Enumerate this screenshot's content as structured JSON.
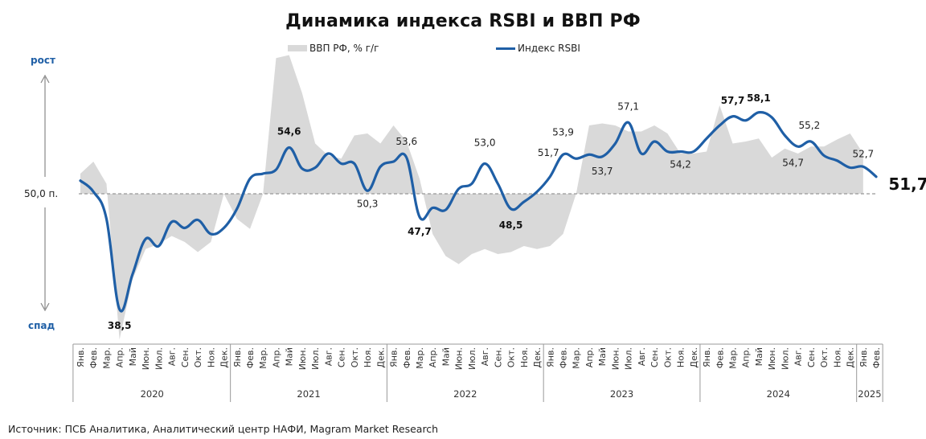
{
  "title": "Динамика индекса RSBI и ВВП РФ",
  "legend": {
    "gdp": "ВВП РФ, % г/г",
    "rsbi": "Индекс RSBI"
  },
  "axis": {
    "up_label": "рост",
    "down_label": "спад",
    "reference_label": "50,0 п."
  },
  "source": "Источник: ПСБ Аналитика, Аналитический центр НАФИ, Magram Market Research",
  "colors": {
    "rsbi_line": "#1f5fa6",
    "gdp_area": "#d9d9d9",
    "accent_text": "#1f5fa6"
  },
  "chart_data": {
    "type": "line",
    "title": "Динамика индекса RSBI и ВВП РФ",
    "xlabel": "",
    "ylabel": "",
    "reference_line": 50.0,
    "ylim": [
      37,
      65
    ],
    "grid": false,
    "legend_position": "top",
    "months": [
      "Янв.",
      "Фев.",
      "Мар.",
      "Апр.",
      "Май",
      "Июн.",
      "Июл.",
      "Авг.",
      "Сен.",
      "Окт.",
      "Ноя.",
      "Дек."
    ],
    "years": [
      {
        "label": "2020",
        "months": 12
      },
      {
        "label": "2021",
        "months": 12
      },
      {
        "label": "2022",
        "months": 12
      },
      {
        "label": "2023",
        "months": 12
      },
      {
        "label": "2024",
        "months": 12
      },
      {
        "label": "2025",
        "months": 2
      }
    ],
    "series": [
      {
        "name": "Индекс RSBI",
        "type": "line",
        "values": [
          51.3,
          50.2,
          47.5,
          38.5,
          42.0,
          45.5,
          44.8,
          47.2,
          46.6,
          47.4,
          46.0,
          46.6,
          48.5,
          51.5,
          52.0,
          52.4,
          54.6,
          52.5,
          52.6,
          54.0,
          53.0,
          53.0,
          50.3,
          52.7,
          53.2,
          53.6,
          47.7,
          48.6,
          48.4,
          50.5,
          51.0,
          53.0,
          51.0,
          48.5,
          49.2,
          50.2,
          51.7,
          53.9,
          53.5,
          53.9,
          53.7,
          55.0,
          57.1,
          54.0,
          55.2,
          54.2,
          54.2,
          54.2,
          55.5,
          56.8,
          57.7,
          57.3,
          58.1,
          57.6,
          55.8,
          54.7,
          55.2,
          53.8,
          53.3,
          52.6,
          52.7,
          51.7
        ]
      },
      {
        "name": "ВВП РФ, % г/г",
        "type": "area",
        "values": [
          52.0,
          53.2,
          51.0,
          35.5,
          41.5,
          44.5,
          45.0,
          45.8,
          45.2,
          44.2,
          45.2,
          50.0,
          47.5,
          46.5,
          50.0,
          63.5,
          63.8,
          60.0,
          55.0,
          53.8,
          53.5,
          55.8,
          56.0,
          55.0,
          56.8,
          55.2,
          51.5,
          46.0,
          43.8,
          43.0,
          44.0,
          44.5,
          44.0,
          44.2,
          44.8,
          44.5,
          44.8,
          46.0,
          50.0,
          56.8,
          57.0,
          56.8,
          56.2,
          56.2,
          56.8,
          56.0,
          54.0,
          54.0,
          54.2,
          58.8,
          55.0,
          55.2,
          55.5,
          53.6,
          54.5,
          54.0,
          54.7,
          54.7,
          55.4,
          56.0,
          54.0,
          null
        ]
      }
    ],
    "annotations": [
      {
        "index": 3,
        "text": "38,5",
        "bold": true
      },
      {
        "index": 16,
        "text": "54,6",
        "bold": true
      },
      {
        "index": 22,
        "text": "50,3",
        "bold": false
      },
      {
        "index": 25,
        "text": "53,6",
        "bold": false
      },
      {
        "index": 26,
        "text": "47,7",
        "bold": true
      },
      {
        "index": 31,
        "text": "53,0",
        "bold": false
      },
      {
        "index": 33,
        "text": "48,5",
        "bold": true
      },
      {
        "index": 36,
        "text": "51,7",
        "bold": false
      },
      {
        "index": 37,
        "text": "53,9",
        "bold": false
      },
      {
        "index": 40,
        "text": "53,7",
        "bold": false
      },
      {
        "index": 42,
        "text": "57,1",
        "bold": false
      },
      {
        "index": 46,
        "text": "54,2",
        "bold": false
      },
      {
        "index": 50,
        "text": "57,7",
        "bold": true
      },
      {
        "index": 52,
        "text": "58,1",
        "bold": true
      },
      {
        "index": 55,
        "text": "54,7",
        "bold": false
      },
      {
        "index": 56,
        "text": "55,2",
        "bold": false
      },
      {
        "index": 60,
        "text": "52,7",
        "bold": false
      },
      {
        "index": 61,
        "text": "51,7",
        "bold": true
      }
    ]
  }
}
